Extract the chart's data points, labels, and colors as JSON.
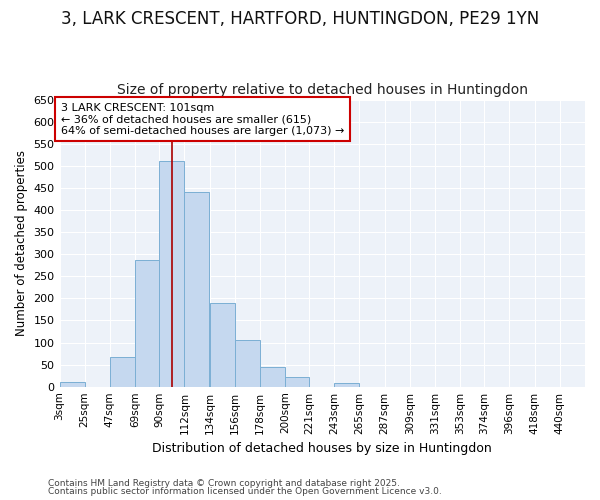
{
  "title1": "3, LARK CRESCENT, HARTFORD, HUNTINGDON, PE29 1YN",
  "title2": "Size of property relative to detached houses in Huntingdon",
  "xlabel": "Distribution of detached houses by size in Huntingdon",
  "ylabel": "Number of detached properties",
  "footnote1": "Contains HM Land Registry data © Crown copyright and database right 2025.",
  "footnote2": "Contains public sector information licensed under the Open Government Licence v3.0.",
  "annotation_line1": "3 LARK CRESCENT: 101sqm",
  "annotation_line2": "← 36% of detached houses are smaller (615)",
  "annotation_line3": "64% of semi-detached houses are larger (1,073) →",
  "bar_left_edges": [
    3,
    25,
    47,
    69,
    90,
    112,
    134,
    156,
    178,
    200,
    221,
    243,
    265,
    287,
    309,
    331,
    353,
    374,
    396,
    418
  ],
  "bar_widths": [
    22,
    22,
    22,
    21,
    22,
    22,
    22,
    22,
    22,
    21,
    22,
    22,
    22,
    22,
    22,
    22,
    21,
    22,
    22,
    22
  ],
  "bar_heights": [
    10,
    0,
    67,
    287,
    512,
    440,
    190,
    105,
    45,
    22,
    0,
    8,
    0,
    0,
    0,
    0,
    0,
    0,
    0,
    0
  ],
  "bar_color": "#c5d8ef",
  "bar_edge_color": "#7bafd4",
  "vline_color": "#aa0000",
  "vline_x": 101,
  "ylim": [
    0,
    650
  ],
  "yticks": [
    0,
    50,
    100,
    150,
    200,
    250,
    300,
    350,
    400,
    450,
    500,
    550,
    600,
    650
  ],
  "xlim_left": 3,
  "xlim_right": 462,
  "bg_color": "#ffffff",
  "plot_bg_color": "#edf2f9",
  "grid_color": "#ffffff",
  "annotation_box_color": "#cc0000",
  "title1_fontsize": 12,
  "title2_fontsize": 10,
  "tick_labels": [
    "3sqm",
    "25sqm",
    "47sqm",
    "69sqm",
    "90sqm",
    "112sqm",
    "134sqm",
    "156sqm",
    "178sqm",
    "200sqm",
    "221sqm",
    "243sqm",
    "265sqm",
    "287sqm",
    "309sqm",
    "331sqm",
    "353sqm",
    "374sqm",
    "396sqm",
    "418sqm",
    "440sqm"
  ]
}
